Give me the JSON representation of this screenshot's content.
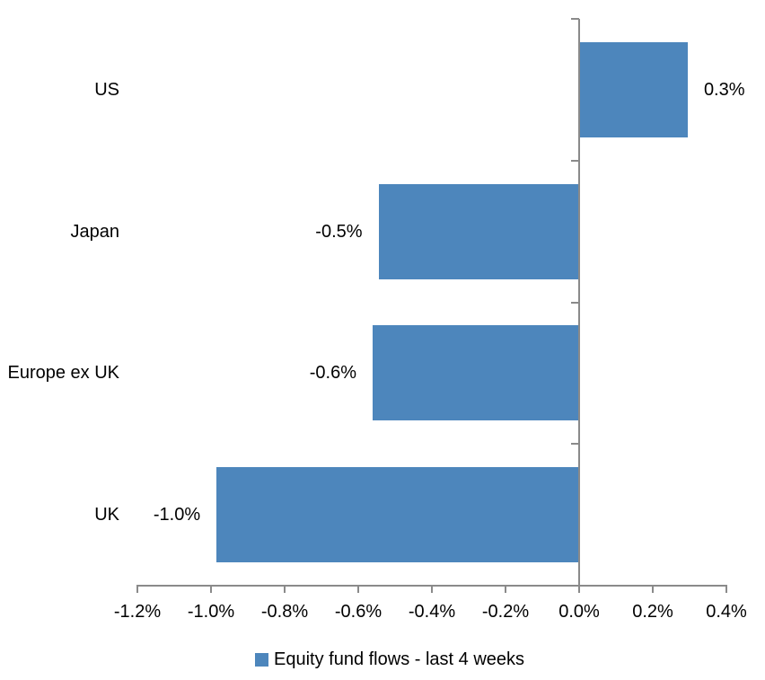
{
  "chart_data": {
    "type": "bar",
    "orientation": "horizontal",
    "title": "",
    "xlabel": "",
    "ylabel": "",
    "categories": [
      "US",
      "Japan",
      "Europe ex UK",
      "UK"
    ],
    "series": [
      {
        "name": "Equity fund flows - last 4 weeks",
        "values": [
          0.3,
          -0.5,
          -0.6,
          -1.0
        ],
        "labels": [
          "0.3%",
          "-0.5%",
          "-0.6%",
          "-1.0%"
        ],
        "values_precise": [
          0.295,
          -0.545,
          -0.561,
          -0.985
        ]
      }
    ],
    "x_axis": {
      "min": -1.2,
      "max": 0.4,
      "step": 0.2,
      "tick_labels": [
        "-1.2%",
        "-1.0%",
        "-0.8%",
        "-0.6%",
        "-0.4%",
        "-0.2%",
        "0.0%",
        "0.2%",
        "0.4%"
      ]
    },
    "legend": {
      "position": "bottom",
      "label": "Equity fund flows - last 4 weeks"
    },
    "grid": false,
    "colors": {
      "bar": "#4D86BC",
      "axis": "#8A8A8A",
      "text": "#000000",
      "background": "#FFFFFF"
    }
  }
}
